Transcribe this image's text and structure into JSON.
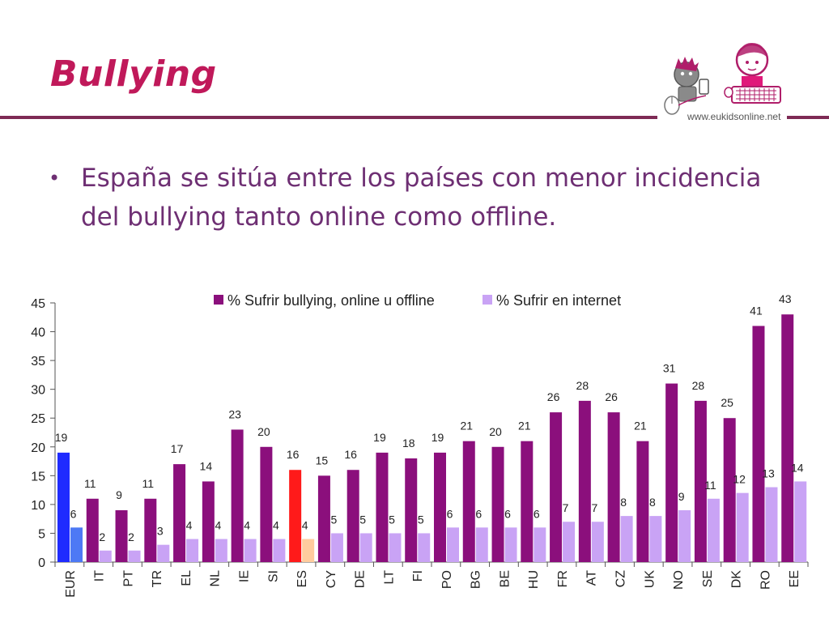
{
  "slide": {
    "title": "Bullying",
    "bullet": "España se sitúa entre los países con menor incidencia del bullying tanto online como offline.",
    "logo_url": "www.eukidsonline.net"
  },
  "colors": {
    "title": "#c0195a",
    "rule": "#7e2a55",
    "bullet_text": "#6e2f73",
    "series1": "#8b0f7c",
    "series2": "#c9a3f5",
    "eur_series1": "#1f2bff",
    "eur_series2": "#4d79f5",
    "es_series1": "#ff1a1a",
    "es_series2": "#ffcc9e"
  },
  "chart_data": {
    "type": "bar",
    "categories": [
      "EUR",
      "IT",
      "PT",
      "TR",
      "EL",
      "NL",
      "IE",
      "SI",
      "ES",
      "CY",
      "DE",
      "LT",
      "FI",
      "PO",
      "BG",
      "BE",
      "HU",
      "FR",
      "AT",
      "CZ",
      "UK",
      "NO",
      "SE",
      "DK",
      "RO",
      "EE"
    ],
    "series": [
      {
        "name": "% Sufrir bullying, online u offline",
        "values": [
          19,
          11,
          9,
          11,
          17,
          14,
          23,
          20,
          16,
          15,
          16,
          19,
          18,
          19,
          21,
          20,
          21,
          26,
          28,
          26,
          21,
          31,
          28,
          25,
          41,
          43
        ]
      },
      {
        "name": "% Sufrir en internet",
        "values": [
          6,
          2,
          2,
          3,
          4,
          4,
          4,
          4,
          4,
          5,
          5,
          5,
          5,
          6,
          6,
          6,
          6,
          7,
          7,
          8,
          8,
          9,
          11,
          12,
          13,
          14
        ]
      }
    ],
    "ylim": [
      0,
      45
    ],
    "yticks": [
      0,
      5,
      10,
      15,
      20,
      25,
      30,
      35,
      40,
      45
    ],
    "legend_position": "top",
    "grid": false,
    "highlight": {
      "EUR": "blue",
      "ES": "red"
    }
  }
}
